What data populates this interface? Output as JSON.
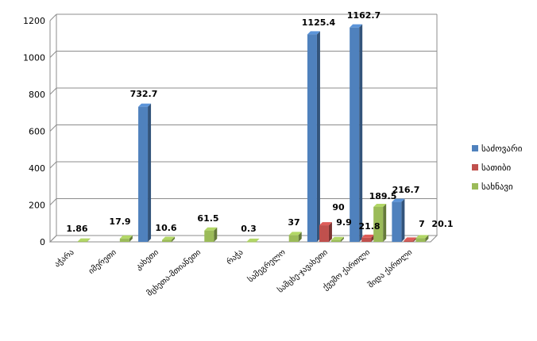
{
  "chart_data": {
    "type": "bar",
    "style": "3d-clustered-column",
    "categories": [
      "აჭარა",
      "იმერეთი",
      "კახეთი",
      "მცხეთა-მთიანეთი",
      "რაჭა",
      "სამეგრელო",
      "სამცხე-ჯავახეთი",
      "ქვემო ქართლი",
      "შიდა ქართლი"
    ],
    "series": [
      {
        "name": "საძოვარი",
        "color": "#4F81BD",
        "values": [
          0,
          0,
          732.7,
          0,
          0,
          0,
          1125.4,
          1162.7,
          216.7
        ]
      },
      {
        "name": "სათიბი",
        "color": "#C0504D",
        "values": [
          0,
          0,
          0,
          0,
          0,
          0,
          90,
          21.8,
          7
        ]
      },
      {
        "name": "სახნავი",
        "color": "#9BBB59",
        "values": [
          1.86,
          17.9,
          10.6,
          61.5,
          0.3,
          37,
          9.9,
          189.5,
          20.1
        ]
      }
    ],
    "data_labels": [
      {
        "category": 0,
        "series": 2,
        "text": "1.86"
      },
      {
        "category": 1,
        "series": 2,
        "text": "17.9"
      },
      {
        "category": 2,
        "series": 0,
        "text": "732.7"
      },
      {
        "category": 2,
        "series": 2,
        "text": "10.6"
      },
      {
        "category": 3,
        "series": 2,
        "text": "61.5"
      },
      {
        "category": 4,
        "series": 2,
        "text": "0.3"
      },
      {
        "category": 5,
        "series": 2,
        "text": "37"
      },
      {
        "category": 6,
        "series": 0,
        "text": "1125.4"
      },
      {
        "category": 6,
        "series": 1,
        "text": "90"
      },
      {
        "category": 6,
        "series": 2,
        "text": "9.9"
      },
      {
        "category": 7,
        "series": 0,
        "text": "1162.7"
      },
      {
        "category": 7,
        "series": 1,
        "text": "21.8"
      },
      {
        "category": 7,
        "series": 2,
        "text": "189.5"
      },
      {
        "category": 8,
        "series": 0,
        "text": "216.7"
      },
      {
        "category": 8,
        "series": 1,
        "text": "7"
      },
      {
        "category": 8,
        "series": 2,
        "text": "20.1"
      }
    ],
    "yticks": [
      0,
      200,
      400,
      600,
      800,
      1000,
      1200
    ],
    "ylim": [
      0,
      1200
    ],
    "grid": true,
    "legend": "right"
  }
}
